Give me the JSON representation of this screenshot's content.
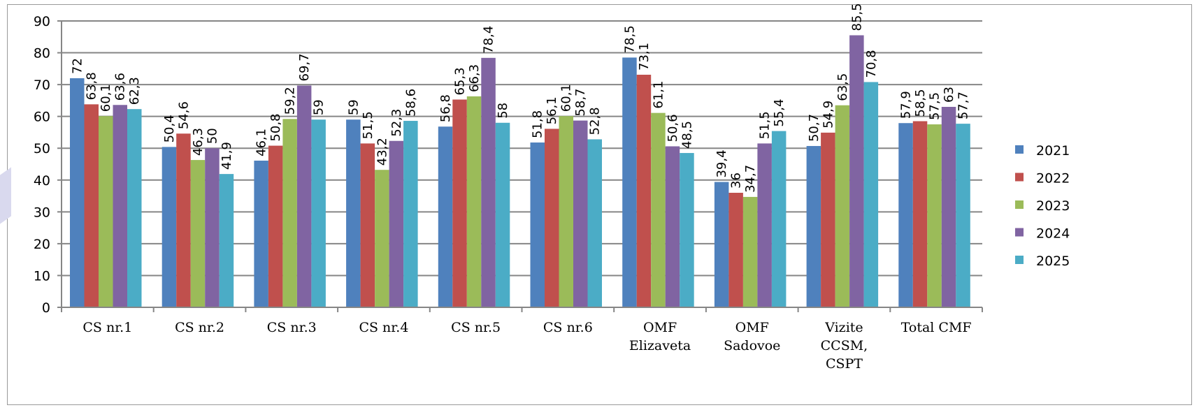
{
  "chart_data": {
    "type": "bar",
    "title": "",
    "xlabel": "",
    "ylabel": "",
    "ylim": [
      0,
      90
    ],
    "yticks": [
      0,
      10,
      20,
      30,
      40,
      50,
      60,
      70,
      80,
      90
    ],
    "grid": true,
    "legend_position": "right",
    "categories": [
      [
        "CS nr.1"
      ],
      [
        "CS nr.2"
      ],
      [
        "CS nr.3"
      ],
      [
        "CS nr.4"
      ],
      [
        "CS nr.5"
      ],
      [
        "CS nr.6"
      ],
      [
        "OMF",
        "Elizaveta"
      ],
      [
        "OMF",
        "Sadovoe"
      ],
      [
        "Vizite",
        "CCSM,",
        "CSPT"
      ],
      [
        "Total CMF"
      ]
    ],
    "series": [
      {
        "name": "2021",
        "color": "#4f81bd",
        "values": [
          72,
          50.4,
          46.1,
          59,
          56.8,
          51.8,
          78.5,
          39.4,
          50.7,
          57.9
        ],
        "labels": [
          "72",
          "50,4",
          "46,1",
          "59",
          "56,8",
          "51,8",
          "78,5",
          "39,4",
          "50,7",
          "57,9"
        ]
      },
      {
        "name": "2022",
        "color": "#c0504d",
        "values": [
          63.8,
          54.6,
          50.8,
          51.5,
          65.3,
          56.1,
          73.1,
          36,
          54.9,
          58.5
        ],
        "labels": [
          "63,8",
          "54,6",
          "50,8",
          "51,5",
          "65,3",
          "56,1",
          "73,1",
          "36",
          "54,9",
          "58,5"
        ]
      },
      {
        "name": "2023",
        "color": "#9bbb59",
        "values": [
          60.1,
          46.3,
          59.2,
          43.2,
          66.3,
          60.1,
          61.1,
          34.7,
          63.5,
          57.5
        ],
        "labels": [
          "60,1",
          "46,3",
          "59,2",
          "43,2",
          "66,3",
          "60,1",
          "61,1",
          "34,7",
          "63,5",
          "57,5"
        ]
      },
      {
        "name": "2024",
        "color": "#8064a2",
        "values": [
          63.6,
          50,
          69.7,
          52.3,
          78.4,
          58.7,
          50.6,
          51.5,
          85.5,
          63
        ],
        "labels": [
          "63,6",
          "50",
          "69,7",
          "52,3",
          "78,4",
          "58,7",
          "50,6",
          "51,5",
          "85,5",
          "63"
        ]
      },
      {
        "name": "2025",
        "color": "#4bacc6",
        "values": [
          62.3,
          41.9,
          59,
          58.6,
          58,
          52.8,
          48.5,
          55.4,
          70.8,
          57.7
        ],
        "labels": [
          "62,3",
          "41,9",
          "59",
          "58,6",
          "58",
          "52,8",
          "48,5",
          "55,4",
          "70,8",
          "57,7"
        ]
      }
    ]
  }
}
